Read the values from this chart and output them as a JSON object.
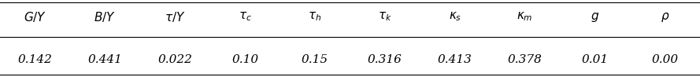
{
  "headers": [
    "$G/Y$",
    "$B/Y$",
    "$\\tau/Y$",
    "$\\tau_c$",
    "$\\tau_h$",
    "$\\tau_k$",
    "$\\kappa_s$",
    "$\\kappa_m$",
    "$g$",
    "$\\rho$"
  ],
  "values": [
    "0.142",
    "0.441",
    "0.022",
    "0.10",
    "0.15",
    "0.316",
    "0.413",
    "0.378",
    "0.01",
    "0.00"
  ],
  "background_color": "#ffffff",
  "line_color": "#000000",
  "header_fontsize": 11,
  "value_fontsize": 11
}
